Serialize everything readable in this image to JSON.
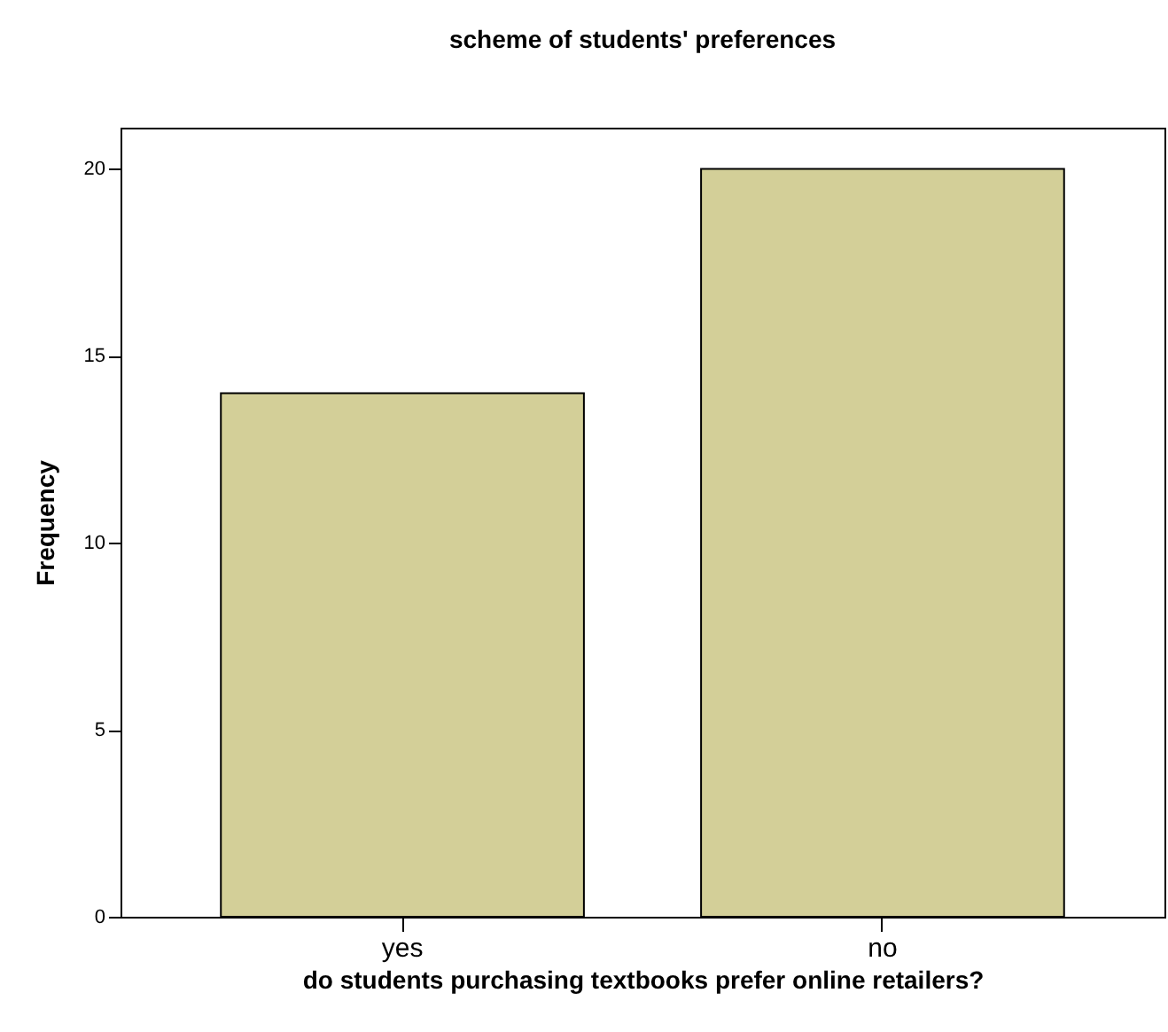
{
  "chart_data": {
    "type": "bar",
    "title": "scheme of students' preferences",
    "xlabel": "do students purchasing textbooks prefer online retailers?",
    "ylabel": "Frequency",
    "categories": [
      "yes",
      "no"
    ],
    "values": [
      14,
      20
    ],
    "color": "#d3cf98",
    "ylim": [
      0,
      21.1
    ],
    "yticks": [
      0,
      5,
      10,
      15,
      20
    ],
    "grid": false
  }
}
